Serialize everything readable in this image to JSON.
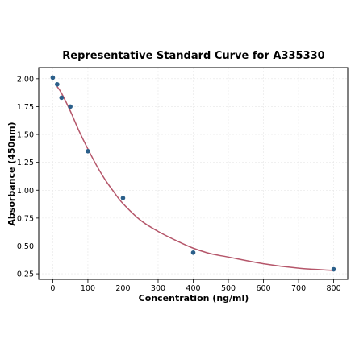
{
  "chart_data": {
    "type": "scatter",
    "title": "Representative Standard Curve for A335330",
    "xlabel": "Concentration (ng/ml)",
    "ylabel": "Absorbance (450nm)",
    "xlim": [
      -40,
      840
    ],
    "ylim": [
      0.2,
      2.1
    ],
    "xticks": [
      0,
      100,
      200,
      300,
      400,
      500,
      600,
      700,
      800
    ],
    "yticks": [
      0.25,
      0.5,
      0.75,
      1.0,
      1.25,
      1.5,
      1.75,
      2.0
    ],
    "xtick_labels": [
      "0",
      "100",
      "200",
      "300",
      "400",
      "500",
      "600",
      "700",
      "800"
    ],
    "ytick_labels": [
      "0.25",
      "0.50",
      "0.75",
      "1.00",
      "1.25",
      "1.50",
      "1.75",
      "2.00"
    ],
    "grid": true,
    "series": [
      {
        "kind": "points",
        "color": "#2b5f8a",
        "x": [
          0,
          12.5,
          25,
          50,
          100,
          200,
          400,
          800
        ],
        "y": [
          2.01,
          1.95,
          1.83,
          1.75,
          1.35,
          0.93,
          0.44,
          0.29
        ]
      },
      {
        "kind": "fit-curve",
        "color": "#b5566a",
        "x": [
          12.5,
          25,
          50,
          75,
          100,
          125,
          150,
          175,
          200,
          250,
          300,
          350,
          400,
          450,
          500,
          600,
          700,
          800
        ],
        "y": [
          1.93,
          1.87,
          1.71,
          1.53,
          1.37,
          1.22,
          1.09,
          0.98,
          0.88,
          0.73,
          0.63,
          0.55,
          0.48,
          0.43,
          0.4,
          0.34,
          0.3,
          0.28
        ]
      }
    ]
  }
}
